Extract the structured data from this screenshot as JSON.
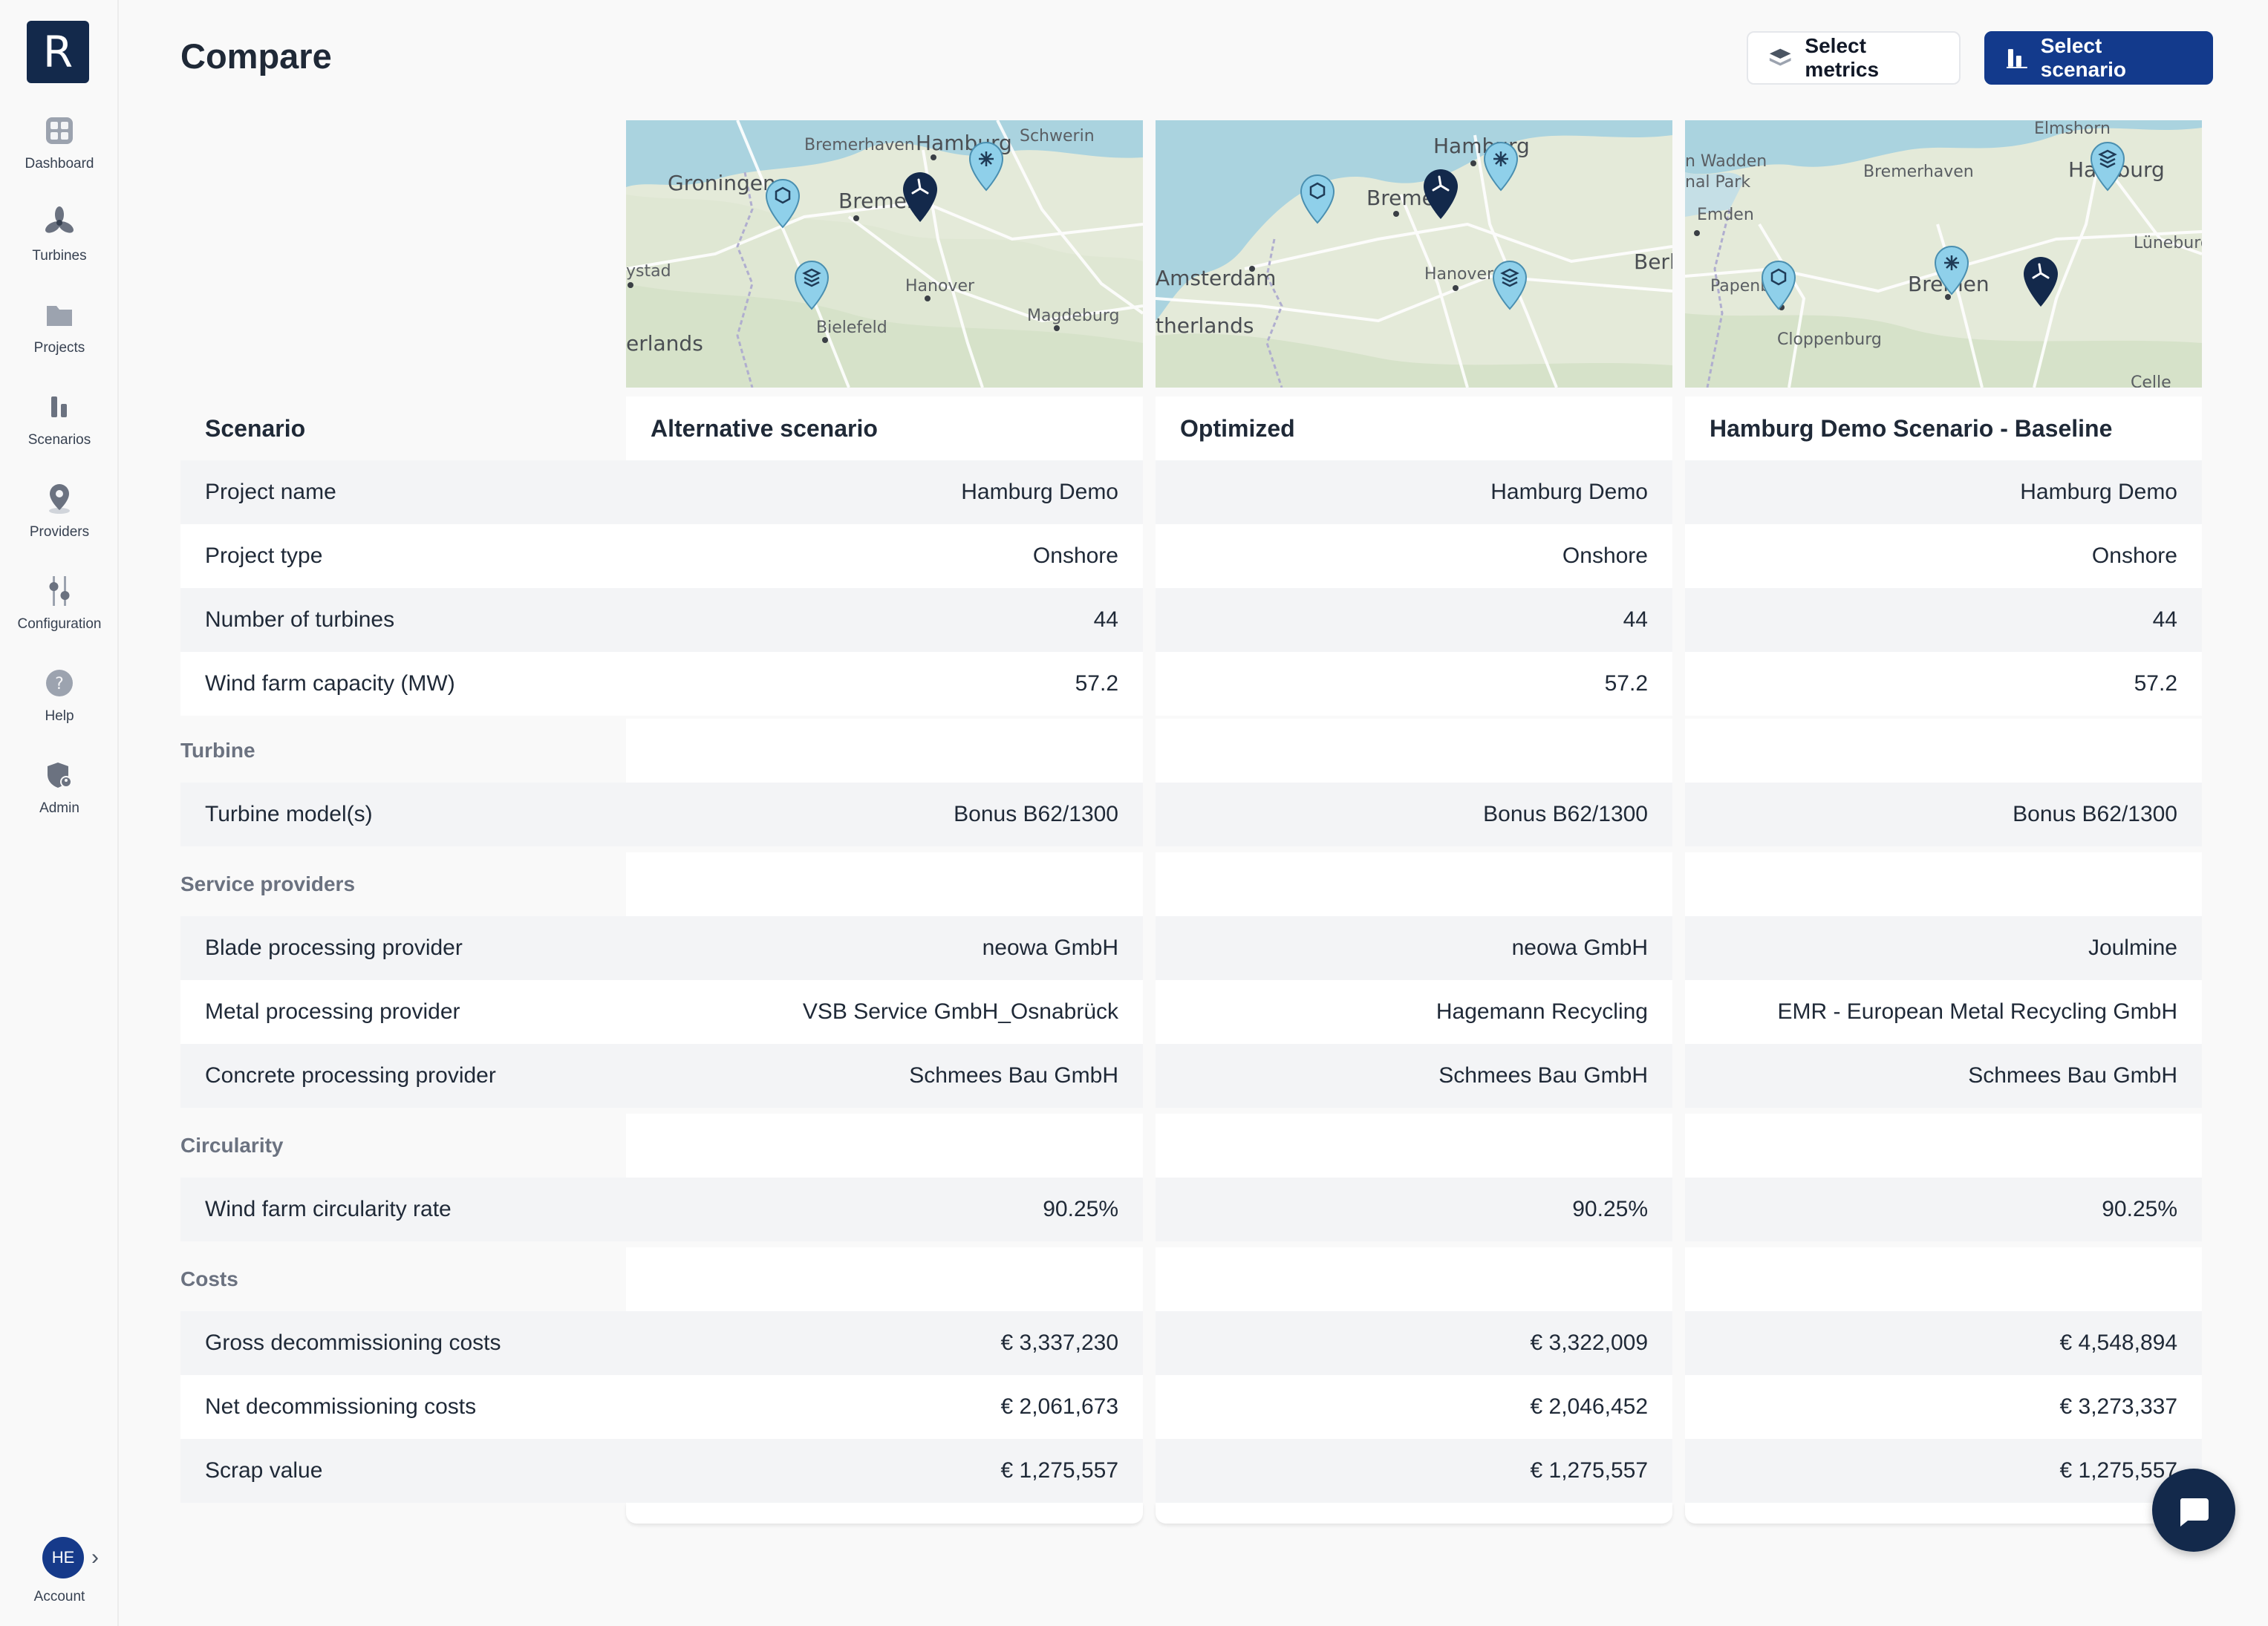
{
  "app": {
    "logo_letter": "R"
  },
  "sidebar": {
    "items": [
      {
        "label": "Dashboard",
        "icon": "grid-icon"
      },
      {
        "label": "Turbines",
        "icon": "turbine-icon"
      },
      {
        "label": "Projects",
        "icon": "folder-icon"
      },
      {
        "label": "Scenarios",
        "icon": "bar-chart-icon"
      },
      {
        "label": "Providers",
        "icon": "map-pin-icon"
      },
      {
        "label": "Configuration",
        "icon": "sliders-icon"
      },
      {
        "label": "Help",
        "icon": "help-icon"
      },
      {
        "label": "Admin",
        "icon": "shield-user-icon"
      }
    ],
    "account": {
      "initials": "HE",
      "label": "Account"
    }
  },
  "header": {
    "title": "Compare",
    "select_metrics": "Select metrics",
    "select_scenario": "Select scenario"
  },
  "maps": [
    {
      "labels": [
        "Bremerhaven",
        "Hamburg",
        "Schwerin",
        "Groningen",
        "Bremen",
        "ystad",
        "Hanover",
        "Magdeburg",
        "Bielefeld",
        "erlands"
      ]
    },
    {
      "labels": [
        "Hamburg",
        "Bremen",
        "Amsterdam",
        "Hanover",
        "Berl",
        "therlands"
      ]
    },
    {
      "labels": [
        "Elmshorn",
        "n Wadden",
        "nal Park",
        "Bremerhaven",
        "Hamburg",
        "Emden",
        "Lüneburg",
        "Papenb",
        "Bremen",
        "Cloppenburg",
        "Celle"
      ]
    }
  ],
  "table": {
    "header_label": "Scenario",
    "scenarios": [
      "Alternative scenario",
      "Optimized",
      "Hamburg Demo Scenario - Baseline"
    ],
    "rows": [
      {
        "type": "row",
        "label": "Project name",
        "values": [
          "Hamburg Demo",
          "Hamburg Demo",
          "Hamburg Demo"
        ]
      },
      {
        "type": "row",
        "label": "Project type",
        "values": [
          "Onshore",
          "Onshore",
          "Onshore"
        ]
      },
      {
        "type": "row",
        "label": "Number of turbines",
        "values": [
          "44",
          "44",
          "44"
        ]
      },
      {
        "type": "row",
        "label": "Wind farm capacity (MW)",
        "values": [
          "57.2",
          "57.2",
          "57.2"
        ]
      },
      {
        "type": "section",
        "label": "Turbine"
      },
      {
        "type": "row",
        "label": "Turbine model(s)",
        "values": [
          "Bonus B62/1300",
          "Bonus B62/1300",
          "Bonus B62/1300"
        ]
      },
      {
        "type": "section",
        "label": "Service providers"
      },
      {
        "type": "row",
        "label": "Blade processing provider",
        "values": [
          "neowa GmbH",
          "neowa GmbH",
          "Joulmine"
        ]
      },
      {
        "type": "row",
        "label": "Metal processing provider",
        "values": [
          "VSB Service GmbH_Osnabrück",
          "Hagemann Recycling",
          "EMR - European Metal Recycling GmbH"
        ]
      },
      {
        "type": "row",
        "label": "Concrete processing provider",
        "values": [
          "Schmees Bau GmbH",
          "Schmees Bau GmbH",
          "Schmees Bau GmbH"
        ]
      },
      {
        "type": "section",
        "label": "Circularity"
      },
      {
        "type": "row",
        "label": "Wind farm circularity rate",
        "values": [
          "90.25%",
          "90.25%",
          "90.25%"
        ]
      },
      {
        "type": "section",
        "label": "Costs"
      },
      {
        "type": "row",
        "label": "Gross decommissioning costs",
        "values": [
          "€ 3,337,230",
          "€ 3,322,009",
          "€ 4,548,894"
        ]
      },
      {
        "type": "row",
        "label": "Net decommissioning costs",
        "values": [
          "€ 2,061,673",
          "€ 2,046,452",
          "€ 3,273,337"
        ]
      },
      {
        "type": "row",
        "label": "Scrap value",
        "values": [
          "€ 1,275,557",
          "€ 1,275,557",
          "€ 1,275,557"
        ]
      }
    ]
  },
  "colors": {
    "brand": "#13294b",
    "primary_button": "#133a8c",
    "marker_light": "#8fd0ea",
    "marker_dark": "#13294b"
  }
}
